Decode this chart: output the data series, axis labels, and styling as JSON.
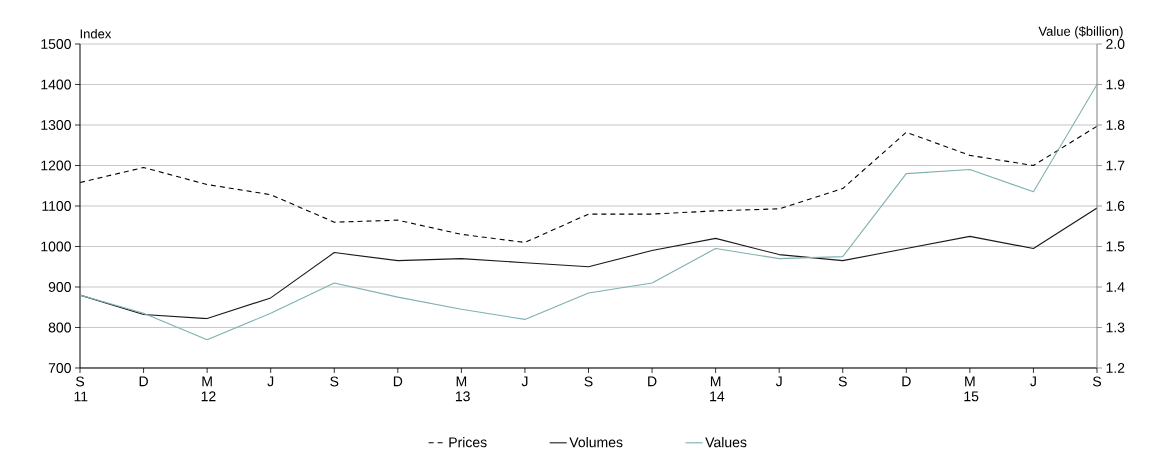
{
  "chart_data": {
    "type": "line",
    "categories": [
      "S 11",
      "D",
      "M 12",
      "J",
      "S",
      "D",
      "M 13",
      "J",
      "S",
      "D",
      "M 14",
      "J",
      "S",
      "D",
      "M 15",
      "J",
      "S"
    ],
    "ylabel": "Index",
    "y2label": "Value ($billion)",
    "ylim": [
      700,
      1500
    ],
    "yticks": [
      700,
      800,
      900,
      1000,
      1100,
      1200,
      1300,
      1400,
      1500
    ],
    "y2lim": [
      1.2,
      2.0
    ],
    "y2ticks": [
      1.2,
      1.3,
      1.4,
      1.5,
      1.6,
      1.7,
      1.8,
      1.9,
      {
        "value": 2.0,
        "label": "2.0"
      }
    ],
    "grid": "y",
    "legend": "bottom",
    "series": [
      {
        "name": "Prices",
        "color": "#000000",
        "line_style": "dashed",
        "values": [
          1158,
          1195,
          1153,
          1128,
          1060,
          1065,
          1030,
          1010,
          1080,
          1080,
          1088,
          1093,
          1143,
          1282,
          1225,
          1200,
          1297
        ]
      },
      {
        "name": "Volumes",
        "color": "#1a1a1a",
        "line_style": "solid",
        "values": [
          880,
          832,
          822,
          873,
          985,
          965,
          970,
          960,
          950,
          990,
          1020,
          980,
          965,
          995,
          1025,
          995,
          1095
        ]
      },
      {
        "name": "Values",
        "color": "#7fb0b0",
        "line_style": "solid",
        "axis": "y2",
        "values": [
          1.38,
          1.335,
          1.27,
          1.335,
          1.41,
          1.375,
          1.345,
          1.32,
          1.385,
          1.41,
          1.495,
          1.47,
          1.475,
          1.68,
          1.69,
          1.635,
          1.9
        ]
      }
    ]
  }
}
